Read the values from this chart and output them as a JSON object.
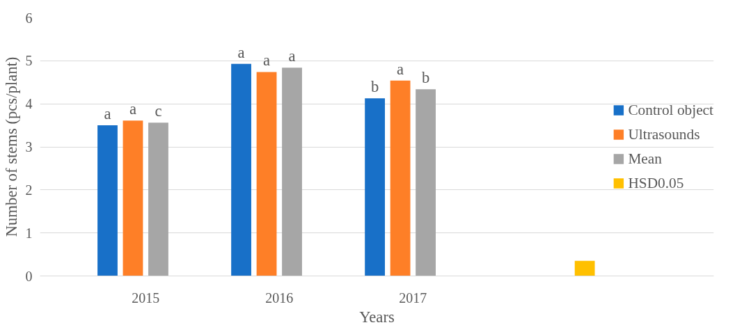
{
  "chart_data": {
    "type": "bar",
    "xlabel": "Years",
    "ylabel": "Number of stems (pcs/plant)",
    "categories": [
      "2015",
      "2016",
      "2017",
      null
    ],
    "series": [
      {
        "name": "Control object",
        "color": "#1870c8",
        "values": [
          3.5,
          4.93,
          4.13,
          null
        ],
        "value_labels": [
          "a",
          "a",
          "b",
          null
        ]
      },
      {
        "name": "Ultrasounds",
        "color": "#fe7f27",
        "values": [
          3.61,
          4.74,
          4.54,
          null
        ],
        "value_labels": [
          "a",
          "a",
          "a",
          null
        ]
      },
      {
        "name": "Mean",
        "color": "#a6a6a6",
        "values": [
          3.56,
          4.84,
          4.34,
          null
        ],
        "value_labels": [
          "c",
          "a",
          "b",
          null
        ]
      },
      {
        "name": "HSD0.05",
        "color": "#ffc000",
        "values": [
          null,
          null,
          null,
          0.35
        ]
      }
    ],
    "ylim": [
      0,
      6
    ],
    "yticks": [
      0,
      1,
      2,
      3,
      4,
      5,
      6
    ],
    "grid": "y",
    "legend": "right"
  }
}
